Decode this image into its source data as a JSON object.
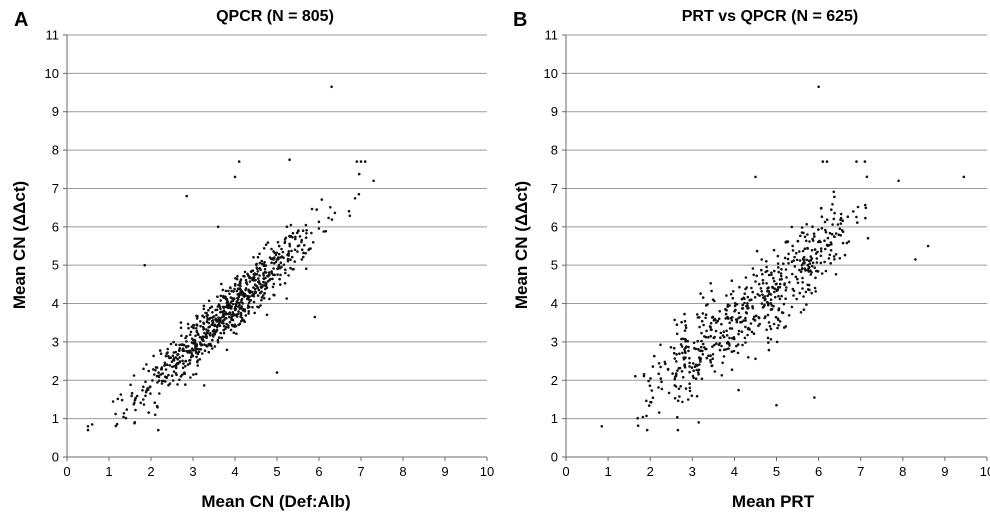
{
  "chart_data": [
    {
      "type": "scatter",
      "panel": "A",
      "title": "QPCR (N = 805)",
      "xlabel": "Mean CN (Def:Alb)",
      "ylabel": "Mean CN (ΔΔct)",
      "xlim": [
        0,
        10
      ],
      "ylim": [
        0,
        11
      ],
      "xticks": [
        0,
        1,
        2,
        3,
        4,
        5,
        6,
        7,
        8,
        9,
        10
      ],
      "yticks": [
        0,
        1,
        2,
        3,
        4,
        5,
        6,
        7,
        8,
        9,
        10,
        11
      ],
      "grid": "horizontal",
      "marker_color": "#111111",
      "n_points": 805,
      "trend": {
        "slope": 1.0,
        "intercept": -0.05,
        "x_range": [
          0.5,
          7.3
        ],
        "spread": 0.35
      },
      "x_distribution": {
        "mean": 3.8,
        "sd": 1.05
      },
      "outliers": [
        [
          6.3,
          9.65
        ],
        [
          4.1,
          7.7
        ],
        [
          5.3,
          7.75
        ],
        [
          7.0,
          7.7
        ],
        [
          6.9,
          7.7
        ],
        [
          7.1,
          7.7
        ],
        [
          7.3,
          7.2
        ],
        [
          4.0,
          7.3
        ],
        [
          1.85,
          5.0
        ],
        [
          3.6,
          6.0
        ],
        [
          5.0,
          2.2
        ],
        [
          5.9,
          3.65
        ],
        [
          2.1,
          1.1
        ],
        [
          0.5,
          0.8
        ],
        [
          0.6,
          0.85
        ],
        [
          2.85,
          6.8
        ]
      ]
    },
    {
      "type": "scatter",
      "panel": "B",
      "title": "PRT vs QPCR (N = 625)",
      "xlabel": "Mean PRT",
      "ylabel": "Mean CN (ΔΔct)",
      "xlim": [
        0,
        10
      ],
      "ylim": [
        0,
        11
      ],
      "xticks": [
        0,
        1,
        2,
        3,
        4,
        5,
        6,
        7,
        8,
        9,
        10
      ],
      "yticks": [
        0,
        1,
        2,
        3,
        4,
        5,
        6,
        7,
        8,
        9,
        10,
        11
      ],
      "grid": "horizontal",
      "marker_color": "#111111",
      "n_points": 625,
      "trend": {
        "slope": 0.9,
        "intercept": -0.1,
        "x_range": [
          1.6,
          7.2
        ],
        "spread": 0.55
      },
      "x_clusters": [
        3,
        4,
        5,
        6
      ],
      "outliers": [
        [
          6.0,
          9.65
        ],
        [
          0.85,
          0.8
        ],
        [
          9.45,
          7.3
        ],
        [
          8.6,
          5.5
        ],
        [
          8.3,
          5.15
        ],
        [
          7.9,
          7.2
        ],
        [
          5.0,
          1.35
        ],
        [
          5.9,
          1.55
        ],
        [
          4.5,
          7.3
        ],
        [
          6.9,
          7.7
        ],
        [
          7.1,
          7.7
        ],
        [
          6.1,
          7.7
        ],
        [
          6.2,
          7.7
        ]
      ]
    }
  ]
}
